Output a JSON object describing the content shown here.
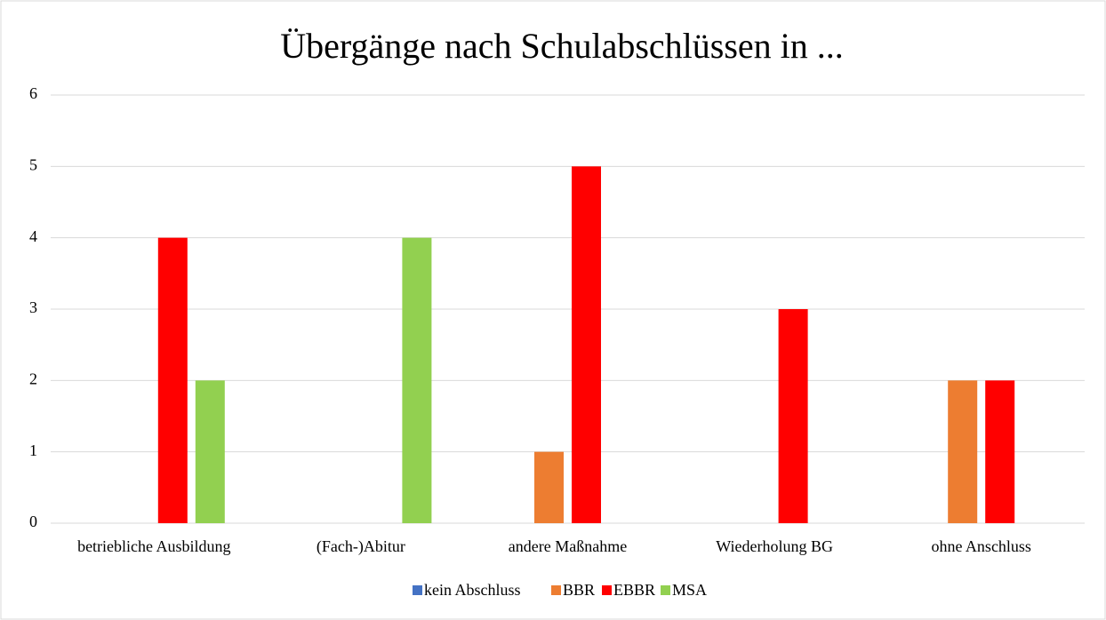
{
  "chart_data": {
    "type": "bar",
    "title": "Übergänge nach Schulabschlüssen in ...",
    "categories": [
      "betriebliche Ausbildung",
      "(Fach-)Abitur",
      "andere Maßnahme",
      "Wiederholung BG",
      "ohne Anschluss"
    ],
    "series": [
      {
        "name": "kein Abschluss",
        "color": "#4472c4",
        "values": [
          0,
          0,
          0,
          0,
          0
        ]
      },
      {
        "name": "BBR",
        "color": "#ed7d31",
        "values": [
          0,
          0,
          1,
          0,
          2
        ]
      },
      {
        "name": "EBBR",
        "color": "#ff0000",
        "values": [
          4,
          0,
          5,
          3,
          2
        ]
      },
      {
        "name": "MSA",
        "color": "#92d050",
        "values": [
          2,
          4,
          0,
          0,
          0
        ]
      }
    ],
    "ylim": [
      0,
      6
    ],
    "yticks": [
      0,
      1,
      2,
      3,
      4,
      5,
      6
    ],
    "grid": true,
    "legend": "bottom"
  }
}
